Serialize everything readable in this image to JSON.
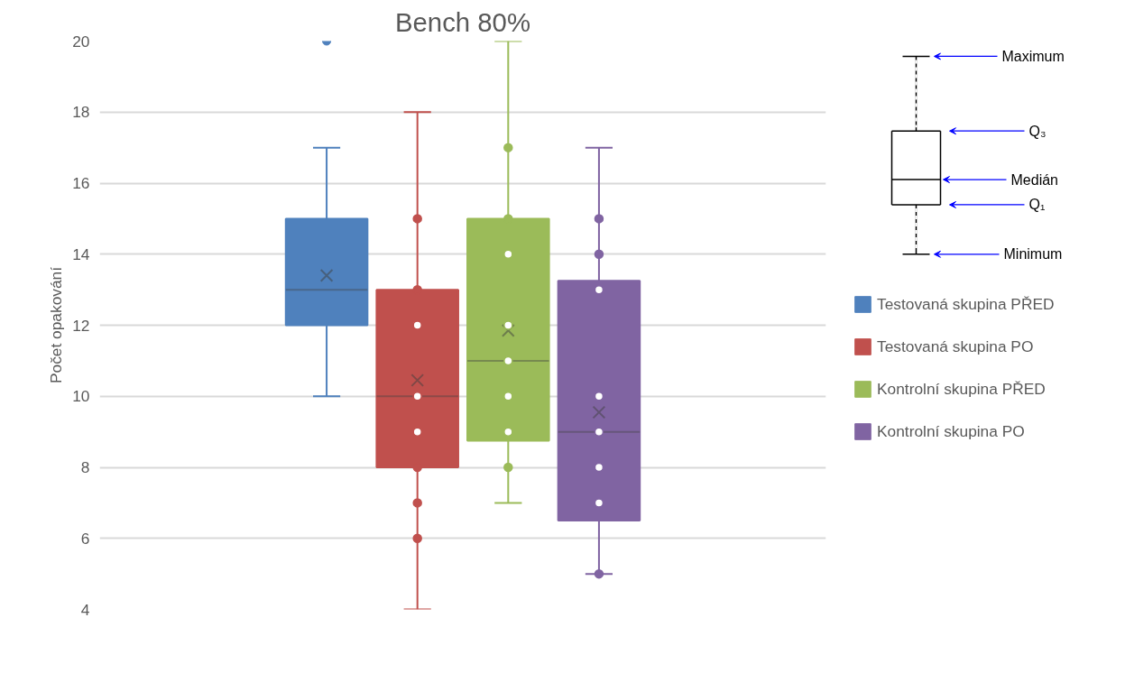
{
  "chart_data": {
    "type": "box",
    "title": "Bench 80%",
    "ylabel": "Počet opakování",
    "categories": [
      null
    ],
    "ylim": [
      4,
      20
    ],
    "yticks": [
      4,
      6,
      8,
      10,
      12,
      14,
      16,
      18,
      20
    ],
    "grid": "y",
    "legend": "right",
    "tick_labels": "y",
    "annotations": [
      "Maximum",
      "Q₃",
      "Medián",
      "Q₁",
      "Minimum"
    ],
    "series": [
      {
        "name": "Testovaná skupina PŘED",
        "color": "#4f81bd",
        "boxes": [
          {
            "low": 10,
            "q1": 12,
            "median": 13,
            "q3": 15,
            "high": 17,
            "mean": 13.4,
            "outliers": [
              20
            ]
          }
        ]
      },
      {
        "name": "Testovaná skupina PO",
        "color": "#c0504d",
        "boxes": [
          {
            "low": 4,
            "q1": 8,
            "median": 10,
            "q3": 13,
            "high": 18,
            "mean": 10.45
          }
        ]
      },
      {
        "type": "scatter",
        "color": "#c0504d",
        "x": [
          null,
          null,
          null,
          null,
          null,
          null,
          null,
          null
        ],
        "values": [
          15,
          13,
          12,
          10,
          9,
          8,
          7,
          6
        ]
      },
      {
        "name": "Kontrolní skupina PŘED",
        "color": "#9bbb59",
        "boxes": [
          {
            "low": 7,
            "q1": 8.75,
            "median": 11,
            "q3": 15,
            "high": 20,
            "mean": 11.85
          }
        ]
      },
      {
        "type": "scatter",
        "color": "#9bbb59",
        "x": [
          null,
          null,
          null,
          null,
          null,
          null,
          null,
          null
        ],
        "values": [
          17,
          15,
          14,
          12,
          11,
          10,
          9,
          8
        ]
      },
      {
        "name": "Kontrolní skupina PO",
        "color": "#8064a2",
        "boxes": [
          {
            "low": 5,
            "q1": 6.5,
            "median": 9,
            "q3": 13.25,
            "high": 17,
            "mean": 9.55
          }
        ]
      },
      {
        "type": "scatter",
        "color": "#8064a2",
        "x": [
          null,
          null,
          null,
          null,
          null,
          null,
          null,
          null
        ],
        "values": [
          15,
          14,
          13,
          10,
          9,
          8,
          7,
          5
        ]
      }
    ]
  }
}
